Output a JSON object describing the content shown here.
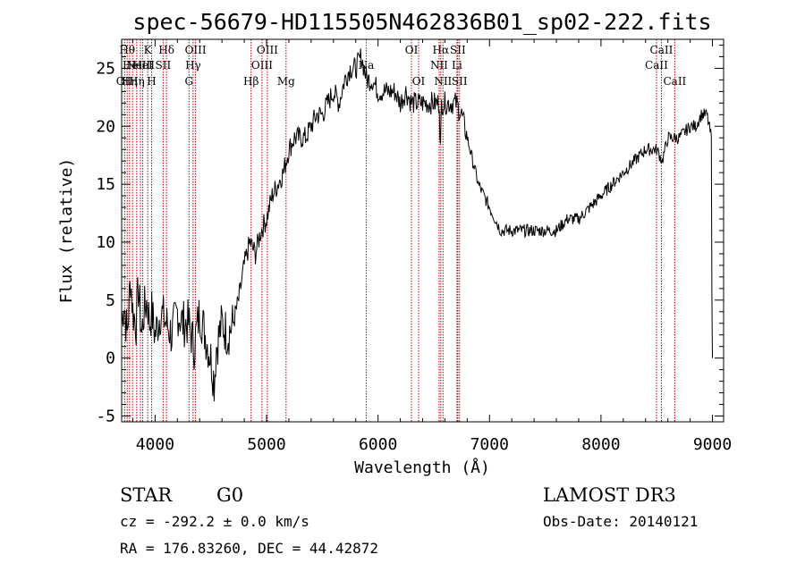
{
  "chart_data": {
    "type": "line",
    "title": "spec-56679-HD115505N462836B01_sp02-222.fits",
    "xlabel": "Wavelength (Å)",
    "ylabel": "Flux (relative)",
    "xlim": [
      3700,
      9100
    ],
    "ylim": [
      -5.5,
      27.5
    ],
    "xticks": [
      4000,
      5000,
      6000,
      7000,
      8000,
      9000
    ],
    "yticks": [
      -5,
      0,
      5,
      10,
      15,
      20,
      25
    ],
    "grid": false,
    "series": [
      {
        "x": [
          3700,
          3720,
          3750,
          3780,
          3800,
          3830,
          3850,
          3880,
          3900,
          3930,
          3950,
          3970,
          4000,
          4050,
          4100,
          4150,
          4200,
          4250,
          4300,
          4350,
          4400,
          4450,
          4500,
          4530,
          4550,
          4600,
          4650,
          4700,
          4750,
          4800,
          4850,
          4900,
          4950,
          5000,
          5050,
          5100,
          5150,
          5200,
          5250,
          5300,
          5350,
          5400,
          5450,
          5500,
          5550,
          5600,
          5650,
          5700,
          5750,
          5800,
          5850,
          5900,
          5950,
          6000,
          6050,
          6100,
          6150,
          6200,
          6250,
          6300,
          6350,
          6400,
          6450,
          6500,
          6550,
          6560,
          6570,
          6600,
          6650,
          6700,
          6750,
          6800,
          6850,
          6900,
          6950,
          7000,
          7050,
          7100,
          7150,
          7200,
          7300,
          7400,
          7500,
          7600,
          7700,
          7800,
          7900,
          8000,
          8100,
          8200,
          8300,
          8400,
          8500,
          8550,
          8600,
          8700,
          8800,
          8850,
          8900,
          8950,
          8990,
          8995,
          9000
        ],
        "y": [
          3,
          5,
          2,
          7,
          4,
          3,
          6,
          2,
          4,
          5,
          3,
          4,
          2,
          4,
          3,
          2,
          4,
          3,
          3,
          1,
          4,
          2,
          0,
          -2,
          1,
          3,
          2,
          3,
          5,
          8,
          10,
          9,
          11,
          12,
          14,
          15,
          16,
          18,
          19,
          19,
          19,
          20,
          21,
          21,
          22,
          23,
          22,
          24,
          25,
          25,
          26,
          24,
          24,
          23,
          23,
          23,
          23,
          22,
          23,
          22,
          22,
          22,
          22,
          22,
          22,
          18,
          22,
          22,
          22,
          22,
          21,
          19,
          17,
          15,
          14,
          13,
          12,
          11,
          11,
          11,
          11,
          11,
          11,
          11,
          12,
          12,
          13,
          14,
          15,
          16,
          17,
          18,
          18,
          17,
          19,
          19,
          20,
          20,
          21,
          21,
          19,
          5,
          0
        ]
      }
    ],
    "line_ids": [
      {
        "x": 3727,
        "label": "OII",
        "row": 2
      },
      {
        "x": 3750,
        "label": "Hθ",
        "row": 0
      },
      {
        "x": 3771,
        "label": "Hη",
        "row": 2
      },
      {
        "x": 3798,
        "label": "HeI",
        "row": 1
      },
      {
        "x": 3835,
        "label": "Hη",
        "row": 2
      },
      {
        "x": 3869,
        "label": "NeIII",
        "row": 1
      },
      {
        "x": 3889,
        "label": "HeI",
        "row": 1
      },
      {
        "x": 3934,
        "label": "K",
        "row": 0
      },
      {
        "x": 3969,
        "label": "H",
        "row": 2
      },
      {
        "x": 4072,
        "label": "SII",
        "row": 1
      },
      {
        "x": 4102,
        "label": "Hδ",
        "row": 0
      },
      {
        "x": 4304,
        "label": "G",
        "row": 2
      },
      {
        "x": 4341,
        "label": "Hγ",
        "row": 1
      },
      {
        "x": 4363,
        "label": "OIII",
        "row": 0
      },
      {
        "x": 4861,
        "label": "Hβ",
        "row": 2
      },
      {
        "x": 4959,
        "label": "OIII",
        "row": 1
      },
      {
        "x": 5007,
        "label": "OIII",
        "row": 0
      },
      {
        "x": 5175,
        "label": "Mg",
        "row": 2
      },
      {
        "x": 5894,
        "label": "Na",
        "row": 1
      },
      {
        "x": 6300,
        "label": "OI",
        "row": 0
      },
      {
        "x": 6364,
        "label": "OI",
        "row": 2
      },
      {
        "x": 6548,
        "label": "NII",
        "row": 1
      },
      {
        "x": 6563,
        "label": "Hα",
        "row": 0
      },
      {
        "x": 6583,
        "label": "NII",
        "row": 2
      },
      {
        "x": 6708,
        "label": "Li",
        "row": 1
      },
      {
        "x": 6716,
        "label": "SII",
        "row": 0
      },
      {
        "x": 6731,
        "label": "SII",
        "row": 2
      },
      {
        "x": 8498,
        "label": "CaII",
        "row": 1
      },
      {
        "x": 8542,
        "label": "CaII",
        "row": 0
      },
      {
        "x": 8662,
        "label": "CaII",
        "row": 2
      }
    ]
  },
  "info": {
    "obj_class": "STAR",
    "subclass": "G0",
    "survey": "LAMOST DR3",
    "cz": "cz = -292.2 ± 0.0 km/s",
    "obs_date": "Obs-Date: 20140121",
    "radec": "RA = 176.83260, DEC =  44.42872"
  },
  "colors": {
    "line_marker": "#c0000a",
    "spectrum": "#000000"
  }
}
